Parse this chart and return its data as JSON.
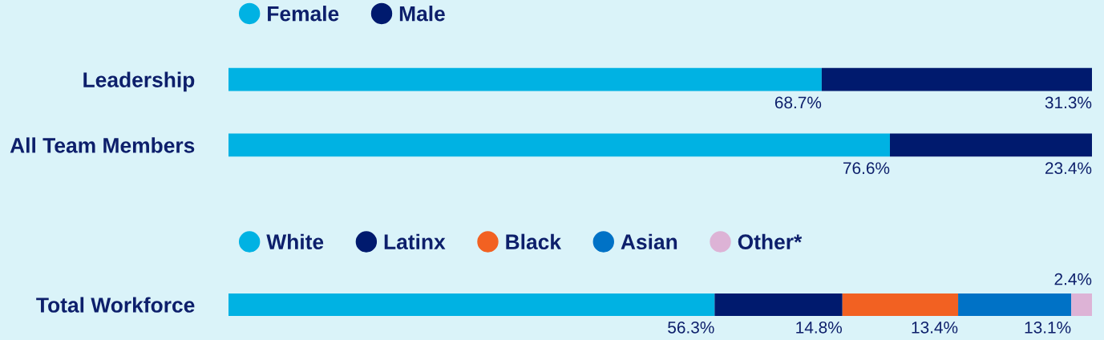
{
  "chart_data": [
    {
      "type": "bar",
      "orientation": "horizontal",
      "stacked": true,
      "categories": [
        "Leadership",
        "All Team Members"
      ],
      "xlim": [
        0,
        100
      ],
      "tick_labels": "y",
      "legend": "top",
      "grid": false,
      "series": [
        {
          "name": "Female",
          "color": "#00b2e3",
          "values": [
            68.7,
            76.6
          ],
          "value_labels": [
            "68.7%",
            "76.6%"
          ]
        },
        {
          "name": "Male",
          "color": "#001a6e",
          "values": [
            31.3,
            23.4
          ],
          "value_labels": [
            "31.3%",
            "23.4%"
          ]
        }
      ]
    },
    {
      "type": "bar",
      "orientation": "horizontal",
      "stacked": true,
      "categories": [
        "Total Workforce"
      ],
      "xlim": [
        0,
        100
      ],
      "tick_labels": "y",
      "legend": "top",
      "grid": false,
      "series": [
        {
          "name": "White",
          "color": "#00b2e3",
          "values": [
            56.3
          ],
          "value_labels": [
            "56.3%"
          ]
        },
        {
          "name": "Latinx",
          "color": "#001a6e",
          "values": [
            14.8
          ],
          "value_labels": [
            "14.8%"
          ]
        },
        {
          "name": "Black",
          "color": "#f26122",
          "values": [
            13.4
          ],
          "value_labels": [
            "13.4%"
          ]
        },
        {
          "name": "Asian",
          "color": "#0072c6",
          "values": [
            13.1
          ],
          "value_labels": [
            "13.1%"
          ]
        },
        {
          "name": "Other*",
          "color": "#ddb3d6",
          "values": [
            2.4
          ],
          "value_labels": [
            "2.4%"
          ]
        }
      ]
    }
  ]
}
